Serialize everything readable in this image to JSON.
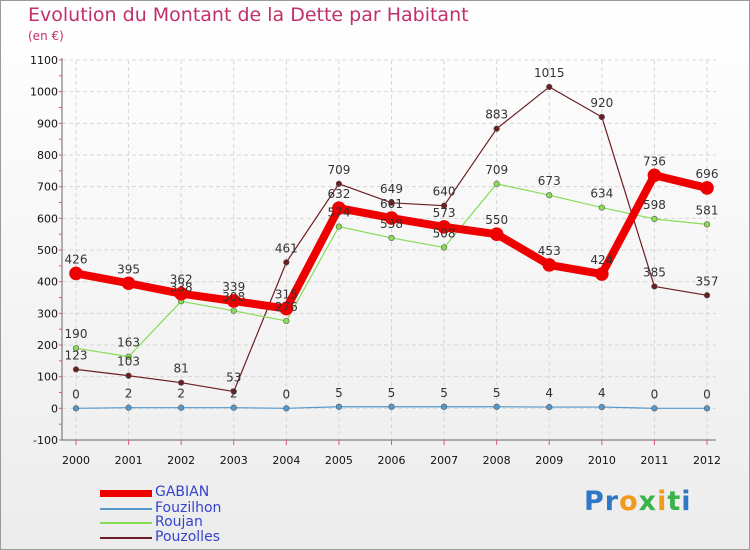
{
  "title": "Evolution du Montant de la Dette par Habitant",
  "subtitle": "(en €)",
  "brand": {
    "p": "Pr",
    "o": "o",
    "x": "x",
    "i": "i",
    "t": "t",
    "i2": "i"
  },
  "chart_data": {
    "type": "line",
    "title": "Evolution du Montant de la Dette par Habitant",
    "ylabel": "(en €)",
    "xlabel": "",
    "ylim": [
      -100,
      1100
    ],
    "yticks": [
      -100,
      0,
      100,
      200,
      300,
      400,
      500,
      600,
      700,
      800,
      900,
      1000,
      1100
    ],
    "categories": [
      "2000",
      "2001",
      "2002",
      "2003",
      "2004",
      "2005",
      "2006",
      "2007",
      "2008",
      "2009",
      "2010",
      "2011",
      "2012"
    ],
    "series": [
      {
        "name": "Pouzolles",
        "color": "#6b1e22",
        "values": [
          123,
          103,
          81,
          53,
          461,
          709,
          649,
          640,
          883,
          1015,
          920,
          385,
          357
        ]
      },
      {
        "name": "Roujan",
        "color": "#88dd55",
        "values": [
          190,
          163,
          338,
          308,
          276,
          574,
          538,
          508,
          709,
          673,
          634,
          598,
          581
        ]
      },
      {
        "name": "Fouzilhon",
        "color": "#5599cc",
        "values": [
          0,
          2,
          2,
          2,
          0,
          5,
          5,
          5,
          5,
          4,
          4,
          0,
          0
        ]
      },
      {
        "name": "GABIAN",
        "color": "#ee0000",
        "values": [
          426,
          395,
          362,
          339,
          315,
          632,
          601,
          573,
          550,
          453,
          424,
          736,
          696
        ]
      }
    ],
    "legend": [
      "GABIAN",
      "Fouzilhon",
      "Roujan",
      "Pouzolles"
    ],
    "grid": true
  }
}
